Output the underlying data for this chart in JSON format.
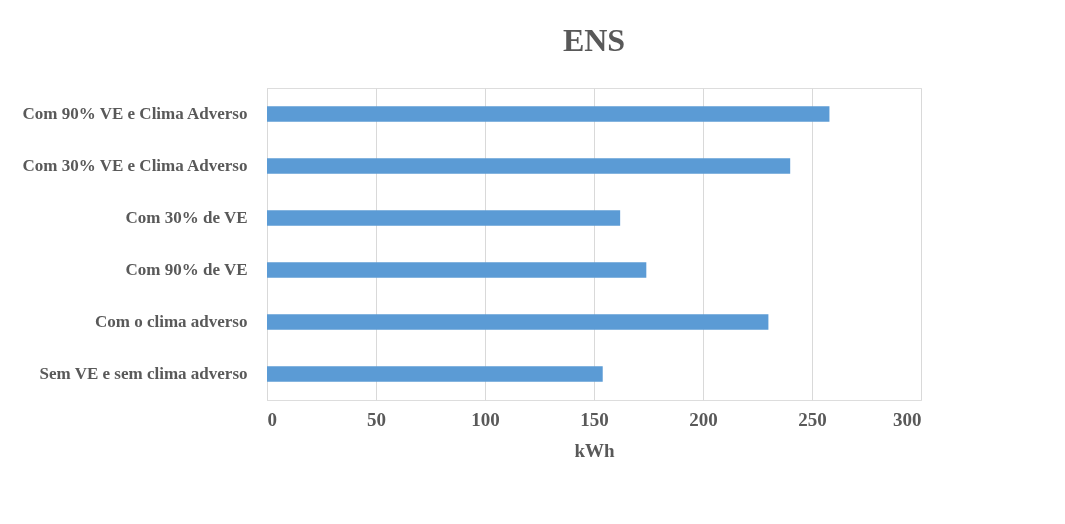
{
  "chart_data": {
    "type": "bar",
    "orientation": "horizontal",
    "title": "ENS",
    "xlabel": "kWh",
    "categories": [
      "Com 90% VE e Clima Adverso",
      "Com 30% VE e Clima Adverso",
      "Com 30% de VE",
      "Com 90% de VE",
      "Com o clima adverso",
      "Sem VE e sem clima adverso"
    ],
    "values": [
      258,
      240,
      162,
      174,
      230,
      154
    ],
    "color": "#5b9bd5",
    "xlim": [
      0,
      300
    ],
    "xticks": [
      0,
      50,
      100,
      150,
      200,
      250,
      300
    ],
    "grid": "x"
  }
}
